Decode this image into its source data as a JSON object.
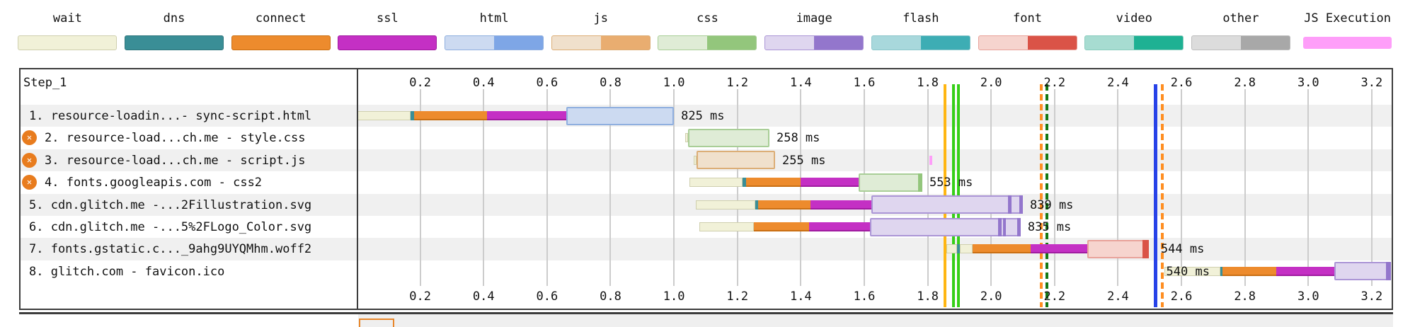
{
  "legend": {
    "items": [
      {
        "label": "wait",
        "type": "wait"
      },
      {
        "label": "dns",
        "type": "dns"
      },
      {
        "label": "connect",
        "type": "connect"
      },
      {
        "label": "ssl",
        "type": "ssl"
      },
      {
        "label": "html",
        "type": "html"
      },
      {
        "label": "js",
        "type": "js"
      },
      {
        "label": "css",
        "type": "css"
      },
      {
        "label": "image",
        "type": "image"
      },
      {
        "label": "flash",
        "type": "flash"
      },
      {
        "label": "font",
        "type": "font"
      },
      {
        "label": "video",
        "type": "video"
      },
      {
        "label": "other",
        "type": "other"
      },
      {
        "label": "JS Execution",
        "type": "jsexec"
      }
    ]
  },
  "colors": {
    "wait": {
      "fill": "#f1f1d8",
      "border": "#cfcfae",
      "dark": "#f1f1d8"
    },
    "dns": {
      "fill": "#3a8e96",
      "border": "#2f767d",
      "dark": "#3a8e96"
    },
    "connect": {
      "fill": "#ed8b2d",
      "border": "#c96f14",
      "dark": "#ed8b2d"
    },
    "ssl": {
      "fill": "#c430c4",
      "border": "#a01ba0",
      "dark": "#c430c4"
    },
    "html": {
      "fill": "#ccdaf1",
      "border": "#8fafdf",
      "dark": "#7ea6e6"
    },
    "js": {
      "fill": "#f0e0cc",
      "border": "#dcae77",
      "dark": "#e9ad70"
    },
    "css": {
      "fill": "#dfecd6",
      "border": "#a9ce97",
      "dark": "#93c67c"
    },
    "image": {
      "fill": "#dfd6ef",
      "border": "#ab95d6",
      "dark": "#9376cc"
    },
    "flash": {
      "fill": "#a8d8dc",
      "border": "#8cc6cb",
      "dark": "#3dadb4"
    },
    "font": {
      "fill": "#f6d4ce",
      "border": "#e8a29a",
      "dark": "#da5347"
    },
    "video": {
      "fill": "#a7dcd1",
      "border": "#8accbe",
      "dark": "#1eb193"
    },
    "other": {
      "fill": "#dcdcdc",
      "border": "#bdbdbd",
      "dark": "#a8a8a8"
    },
    "jsexec": {
      "fill": "#fe9ef9",
      "border": "#fe9ef9",
      "dark": "#fe9ef9"
    }
  },
  "chart_data": {
    "type": "waterfall",
    "title": "Step_1",
    "time_unit": "seconds",
    "axis": {
      "min": 0,
      "max": 3.27,
      "tick_interval": 0.2,
      "ticks": [
        "0.2",
        "0.4",
        "0.6",
        "0.8",
        "1.0",
        "1.2",
        "1.4",
        "1.6",
        "1.8",
        "2.0",
        "2.2",
        "2.4",
        "2.6",
        "2.8",
        "3.0",
        "3.2"
      ]
    },
    "requests": [
      {
        "label": "1. resource-loadin...- sync-script.html",
        "render_blocking": false,
        "duration_label": "825 ms",
        "label_side": "right",
        "phases": [
          {
            "type": "wait",
            "start": 0.002,
            "end": 0.17
          },
          {
            "type": "dns",
            "start": 0.17,
            "end": 0.181
          },
          {
            "type": "connect",
            "start": 0.181,
            "end": 0.411
          },
          {
            "type": "ssl",
            "start": 0.411,
            "end": 0.661
          }
        ],
        "download": {
          "type": "html",
          "start": 0.661,
          "end": 1.0
        },
        "slivers": [],
        "exec": []
      },
      {
        "label": "2. resource-load...ch.me - style.css",
        "render_blocking": true,
        "duration_label": "258 ms",
        "label_side": "right",
        "phases": [
          {
            "type": "wait",
            "start": 1.035,
            "end": 1.044
          }
        ],
        "download": {
          "type": "css",
          "start": 1.044,
          "end": 1.301
        },
        "slivers": [],
        "exec": []
      },
      {
        "label": "3. resource-load...ch.me - script.js",
        "render_blocking": true,
        "duration_label": "255 ms",
        "label_side": "right",
        "phases": [
          {
            "type": "wait",
            "start": 1.062,
            "end": 1.071
          }
        ],
        "download": {
          "type": "js",
          "start": 1.071,
          "end": 1.319
        },
        "slivers": [],
        "exec": [
          {
            "start": 1.805,
            "end": 1.814
          }
        ]
      },
      {
        "label": "4. fonts.googleapis.com - css2",
        "render_blocking": true,
        "duration_label": "553 ms",
        "label_side": "right",
        "phases": [
          {
            "type": "wait",
            "start": 1.049,
            "end": 1.216
          },
          {
            "type": "dns",
            "start": 1.216,
            "end": 1.227
          },
          {
            "type": "connect",
            "start": 1.227,
            "end": 1.399
          },
          {
            "type": "ssl",
            "start": 1.399,
            "end": 1.582
          }
        ],
        "download": {
          "type": "css",
          "start": 1.582,
          "end": 1.783
        },
        "slivers": [
          {
            "start": 1.77,
            "end": 1.783
          }
        ],
        "exec": []
      },
      {
        "label": "5. cdn.glitch.me -...2Fillustration.svg",
        "render_blocking": false,
        "duration_label": "839 ms",
        "label_side": "right",
        "phases": [
          {
            "type": "wait",
            "start": 1.069,
            "end": 1.256
          },
          {
            "type": "dns",
            "start": 1.256,
            "end": 1.265
          },
          {
            "type": "connect",
            "start": 1.265,
            "end": 1.431
          },
          {
            "type": "ssl",
            "start": 1.431,
            "end": 1.622
          }
        ],
        "download": {
          "type": "image",
          "start": 1.622,
          "end": 2.1
        },
        "slivers": [
          {
            "start": 2.053,
            "end": 2.064
          },
          {
            "start": 2.089,
            "end": 2.1
          }
        ],
        "exec": []
      },
      {
        "label": "6. cdn.glitch.me -...5%2FLogo_Color.svg",
        "render_blocking": false,
        "duration_label": "835 ms",
        "label_side": "right",
        "phases": [
          {
            "type": "wait",
            "start": 1.08,
            "end": 1.252
          },
          {
            "type": "connect",
            "start": 1.252,
            "end": 1.426
          },
          {
            "type": "ssl",
            "start": 1.426,
            "end": 1.618
          }
        ],
        "download": {
          "type": "image",
          "start": 1.618,
          "end": 2.093
        },
        "slivers": [
          {
            "start": 2.022,
            "end": 2.033
          },
          {
            "start": 2.037,
            "end": 2.046
          },
          {
            "start": 2.082,
            "end": 2.093
          }
        ],
        "exec": []
      },
      {
        "label": "7. fonts.gstatic.c..._9ahg9UYQMhm.woff2",
        "render_blocking": false,
        "duration_label": "544 ms",
        "label_side": "right",
        "label_time": 2.535,
        "phases": [
          {
            "type": "wait",
            "start": 1.859,
            "end": 1.892
          },
          {
            "type": "dns",
            "start": 1.892,
            "end": 1.901
          },
          {
            "type": "wait",
            "start": 1.901,
            "end": 1.941
          },
          {
            "type": "connect",
            "start": 1.941,
            "end": 2.124
          },
          {
            "type": "ssl",
            "start": 2.124,
            "end": 2.303
          }
        ],
        "download": {
          "type": "font",
          "start": 2.303,
          "end": 2.497
        },
        "slivers": [
          {
            "start": 2.477,
            "end": 2.497
          }
        ],
        "exec": []
      },
      {
        "label": "8. glitch.com - favicon.ico",
        "render_blocking": false,
        "duration_label": "540 ms",
        "label_side": "left",
        "label_time": 2.552,
        "phases": [
          {
            "type": "wait",
            "start": 2.546,
            "end": 2.723
          },
          {
            "type": "dns",
            "start": 2.723,
            "end": 2.729
          },
          {
            "type": "connect",
            "start": 2.729,
            "end": 2.899
          },
          {
            "type": "ssl",
            "start": 2.899,
            "end": 3.082
          }
        ],
        "download": {
          "type": "image",
          "start": 3.082,
          "end": 3.26
        },
        "slivers": [
          {
            "start": 3.245,
            "end": 3.26
          }
        ],
        "exec": []
      }
    ],
    "markers": [
      {
        "name": "marker-amber-solid",
        "style": "solid",
        "color": "#ffb612",
        "width": 4,
        "time": 1.854
      },
      {
        "name": "marker-green-solid-1",
        "style": "solid",
        "color": "#35cf17",
        "width": 4,
        "time": 1.881
      },
      {
        "name": "marker-green-solid-2",
        "style": "solid",
        "color": "#35cf17",
        "width": 4,
        "time": 1.897
      },
      {
        "name": "marker-orange-dashed-1",
        "style": "dashed",
        "color": "#ff8e21",
        "width": 4,
        "time": 2.158
      },
      {
        "name": "marker-darkgreen-dashed",
        "style": "dashed",
        "color": "#157815",
        "width": 4,
        "time": 2.176
      },
      {
        "name": "marker-blue-solid",
        "style": "solid",
        "color": "#2742e8",
        "width": 5,
        "time": 2.519
      },
      {
        "name": "marker-orange-dashed-2",
        "style": "dashed",
        "color": "#ff8e21",
        "width": 4,
        "time": 2.54
      }
    ],
    "next_step_bar": {
      "start": 0.007,
      "end": 0.118
    }
  }
}
